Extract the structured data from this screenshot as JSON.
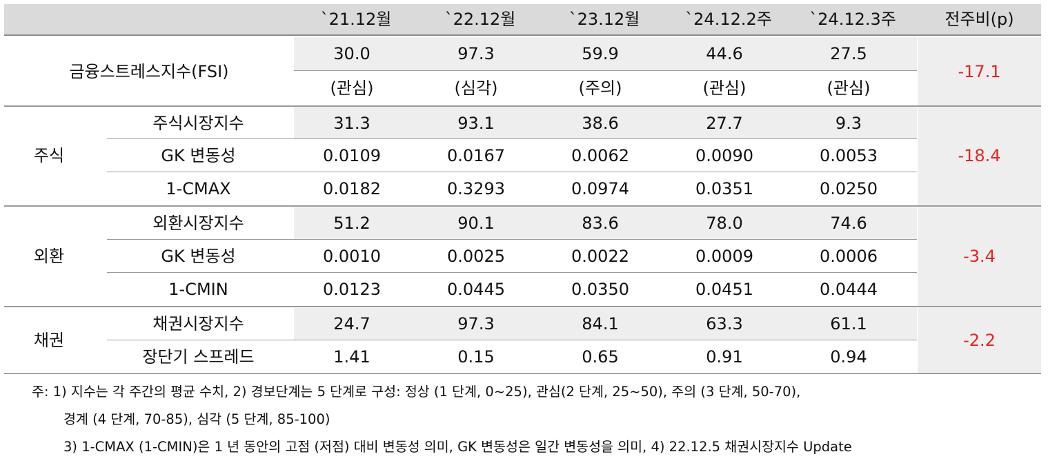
{
  "columns": [
    "`21.12월",
    "`22.12월",
    "`23.12월",
    "`24.12.2주",
    "`24.12.3주",
    "전주비(p)"
  ],
  "fsi": {
    "label": "금융스트레스지수(FSI)",
    "values": [
      "30.0",
      "97.3",
      "59.9",
      "44.6",
      "27.5"
    ],
    "levels": [
      "(관심)",
      "(심각)",
      "(주의)",
      "(관심)",
      "(관심)"
    ],
    "change": "-17.1"
  },
  "groups": [
    {
      "name": "주식",
      "change": "-18.4",
      "rows": [
        {
          "label": "주식시장지수",
          "values": [
            "31.3",
            "93.1",
            "38.6",
            "27.7",
            "9.3"
          ]
        },
        {
          "label": "GK 변동성",
          "values": [
            "0.0109",
            "0.0167",
            "0.0062",
            "0.0090",
            "0.0053"
          ]
        },
        {
          "label": "1-CMAX",
          "values": [
            "0.0182",
            "0.3293",
            "0.0974",
            "0.0351",
            "0.0250"
          ]
        }
      ]
    },
    {
      "name": "외환",
      "change": "-3.4",
      "rows": [
        {
          "label": "외환시장지수",
          "values": [
            "51.2",
            "90.1",
            "83.6",
            "78.0",
            "74.6"
          ]
        },
        {
          "label": "GK 변동성",
          "values": [
            "0.0010",
            "0.0025",
            "0.0022",
            "0.0009",
            "0.0006"
          ]
        },
        {
          "label": "1-CMIN",
          "values": [
            "0.0123",
            "0.0445",
            "0.0350",
            "0.0451",
            "0.0444"
          ]
        }
      ]
    },
    {
      "name": "채권",
      "change": "-2.2",
      "rows": [
        {
          "label": "채권시장지수",
          "values": [
            "24.7",
            "97.3",
            "84.1",
            "63.3",
            "61.1"
          ]
        },
        {
          "label": "장단기 스프레드",
          "values": [
            "1.41",
            "0.15",
            "0.65",
            "0.91",
            "0.94"
          ]
        }
      ]
    }
  ],
  "footnotes": [
    "주: 1) 지수는 각 주간의 평균 수치, 2) 경보단계는 5 단계로 구성: 정상 (1 단계, 0~25), 관심(2 단계, 25~50), 주의 (3 단계, 50-70),",
    "경계 (4 단계, 70-85), 심각 (5 단계, 85-100)",
    "3) 1-CMAX (1-CMIN)은 1 년 동안의 고점 (저점) 대비 변동성 의미, GK 변동성은 일간 변동성을 의미, 4) 22.12.5 채권시장지수 Update"
  ],
  "colors": {
    "header_bg": "#dadada",
    "shaded_bg": "#eeeeee",
    "negative": "#e8231e",
    "rule": "#9a9a9a"
  }
}
